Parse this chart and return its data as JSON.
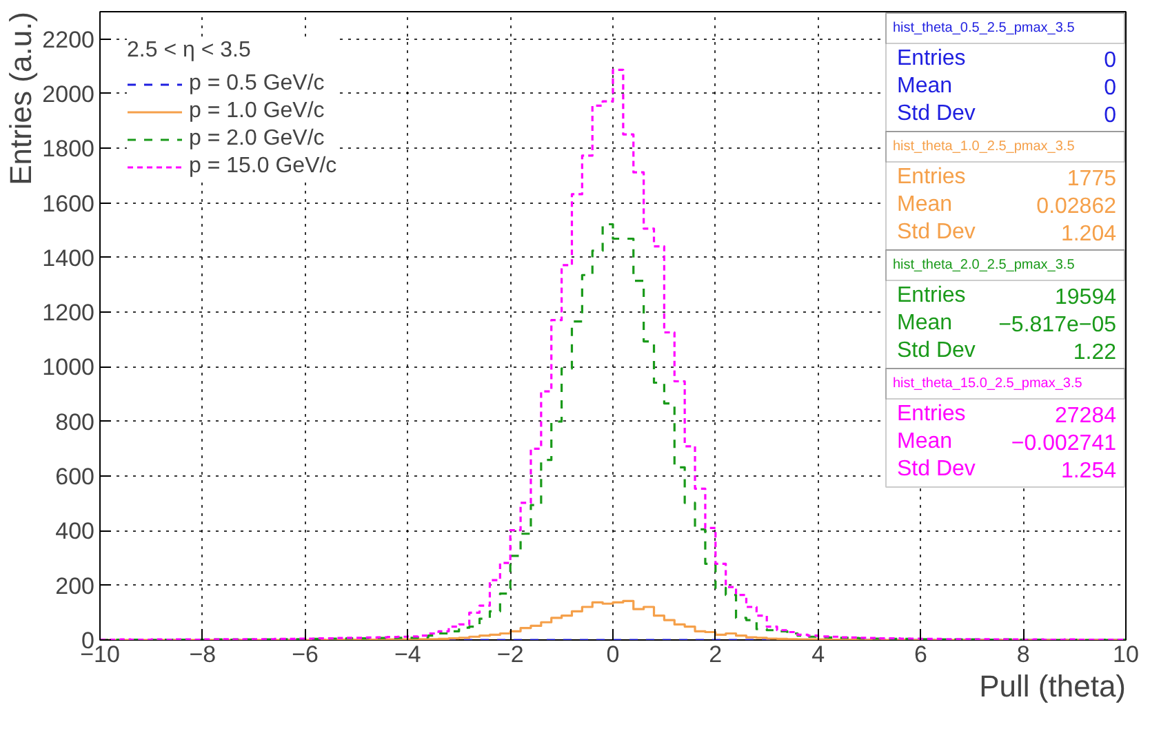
{
  "chart_data": {
    "type": "histogram",
    "xlabel": "Pull (theta)",
    "ylabel": "Entries (a.u.)",
    "legend_title": "2.5 < η < 3.5",
    "bins": [
      -10.0,
      -9.8,
      -9.6,
      -9.4,
      -9.2,
      -9.0,
      -8.8,
      -8.6,
      -8.4,
      -8.2,
      -8.0,
      -7.8,
      -7.6,
      -7.4,
      -7.2,
      -7.0,
      -6.8,
      -6.6,
      -6.4,
      -6.2,
      -6.0,
      -5.8,
      -5.6,
      -5.4,
      -5.2,
      -5.0,
      -4.8,
      -4.6,
      -4.4,
      -4.2,
      -4.0,
      -3.8,
      -3.6,
      -3.4,
      -3.2,
      -3.0,
      -2.8,
      -2.6,
      -2.4,
      -2.2,
      -2.0,
      -1.8,
      -1.6,
      -1.4,
      -1.2,
      -1.0,
      -0.8,
      -0.6,
      -0.4,
      -0.2,
      0.0,
      0.2,
      0.4,
      0.6,
      0.8,
      1.0,
      1.2,
      1.4,
      1.6,
      1.8,
      2.0,
      2.2,
      2.4,
      2.6,
      2.8,
      3.0,
      3.2,
      3.4,
      3.6,
      3.8,
      4.0,
      4.2,
      4.4,
      4.6,
      4.8,
      5.0,
      5.2,
      5.4,
      5.6,
      5.8,
      6.0,
      6.2,
      6.4,
      6.6,
      6.8,
      7.0,
      7.2,
      7.4,
      7.6,
      7.8,
      8.0,
      8.2,
      8.4,
      8.6,
      8.8,
      9.0,
      9.2,
      9.4,
      9.6,
      9.8,
      10.0
    ],
    "series": [
      {
        "name": "p = 0.5 GeV/c",
        "color": "#1f1fe0",
        "line_style": "dashed",
        "values": [
          0,
          0,
          0,
          0,
          0,
          0,
          0,
          0,
          0,
          0,
          0,
          0,
          0,
          0,
          0,
          0,
          0,
          0,
          0,
          0,
          0,
          0,
          0,
          0,
          0,
          0,
          0,
          0,
          0,
          0,
          0,
          0,
          0,
          0,
          0,
          0,
          0,
          0,
          0,
          0,
          0,
          0,
          0,
          0,
          0,
          0,
          0,
          0,
          0,
          0,
          0,
          0,
          0,
          0,
          0,
          0,
          0,
          0,
          0,
          0,
          0,
          0,
          0,
          0,
          0,
          0,
          0,
          0,
          0,
          0,
          0,
          0,
          0,
          0,
          0,
          0,
          0,
          0,
          0,
          0,
          0,
          0,
          0,
          0,
          0,
          0,
          0,
          0,
          0,
          0,
          0,
          0,
          0,
          0,
          0,
          0,
          0,
          0,
          0,
          0
        ]
      },
      {
        "name": "p = 1.0 GeV/c",
        "color": "#f5a04a",
        "line_style": "solid",
        "values": [
          0,
          0,
          0,
          0,
          0,
          0,
          0,
          0,
          0,
          0,
          0,
          0,
          0,
          0,
          0,
          0,
          0,
          0,
          0,
          0,
          0,
          1,
          0,
          1,
          1,
          1,
          1,
          2,
          2,
          2,
          2,
          3,
          3,
          4,
          6,
          8,
          12,
          16,
          19,
          24,
          32,
          44,
          52,
          65,
          81,
          89,
          105,
          121,
          138,
          133,
          138,
          143,
          113,
          121,
          89,
          73,
          57,
          49,
          32,
          29,
          19,
          24,
          16,
          10,
          8,
          5,
          4,
          3,
          2,
          2,
          2,
          1,
          1,
          1,
          0,
          1,
          0,
          0,
          1,
          0,
          0,
          0,
          0,
          0,
          0,
          0,
          0,
          0,
          0,
          0,
          0,
          0,
          0,
          0,
          0,
          0,
          0,
          0,
          0,
          0
        ]
      },
      {
        "name": "p = 2.0 GeV/c",
        "color": "#1a9a1a",
        "line_style": "dashed",
        "values": [
          0,
          1,
          0,
          1,
          1,
          0,
          1,
          1,
          1,
          1,
          1,
          2,
          1,
          2,
          2,
          2,
          2,
          3,
          3,
          3,
          4,
          4,
          5,
          5,
          6,
          6,
          7,
          7,
          7,
          8,
          8,
          10,
          16,
          24,
          32,
          45,
          49,
          78,
          105,
          170,
          308,
          389,
          494,
          659,
          800,
          994,
          1166,
          1336,
          1425,
          1522,
          1469,
          1469,
          1315,
          1093,
          942,
          866,
          632,
          502,
          405,
          279,
          191,
          165,
          81,
          73,
          40,
          36,
          32,
          24,
          16,
          12,
          10,
          9,
          8,
          7,
          6,
          5,
          5,
          4,
          4,
          3,
          3,
          3,
          2,
          2,
          2,
          2,
          1,
          1,
          2,
          1,
          1,
          1,
          1,
          0,
          1,
          1,
          0,
          1,
          0,
          1
        ]
      },
      {
        "name": "p = 15.0 GeV/c",
        "color": "#ff00ff",
        "line_style": "dotted",
        "values": [
          1,
          1,
          2,
          1,
          1,
          2,
          1,
          2,
          2,
          1,
          2,
          2,
          3,
          2,
          3,
          3,
          3,
          4,
          4,
          5,
          5,
          6,
          6,
          7,
          8,
          8,
          9,
          10,
          11,
          12,
          13,
          16,
          24,
          32,
          49,
          57,
          100,
          126,
          219,
          282,
          402,
          502,
          700,
          910,
          1171,
          1372,
          1632,
          1773,
          1956,
          1972,
          2087,
          1851,
          1712,
          1506,
          1441,
          1126,
          947,
          709,
          554,
          410,
          279,
          194,
          165,
          121,
          89,
          49,
          36,
          29,
          19,
          16,
          13,
          12,
          10,
          9,
          8,
          7,
          6,
          6,
          5,
          5,
          4,
          4,
          3,
          3,
          3,
          2,
          3,
          2,
          2,
          2,
          1,
          2,
          1,
          1,
          2,
          1,
          1,
          1,
          1,
          1
        ]
      }
    ],
    "xlim": [
      -10,
      10
    ],
    "ylim": [
      0,
      2300
    ],
    "xticks": [
      {
        "value": -10,
        "label": "−10"
      },
      {
        "value": -8,
        "label": "−8"
      },
      {
        "value": -6,
        "label": "−6"
      },
      {
        "value": -4,
        "label": "−4"
      },
      {
        "value": -2,
        "label": "−2"
      },
      0,
      2,
      4,
      6,
      8,
      10
    ],
    "yticks": [
      0,
      200,
      400,
      600,
      800,
      1000,
      1200,
      1400,
      1600,
      1800,
      2000,
      2200
    ],
    "grid": true,
    "legend": "top left",
    "annotations": [
      "hist_theta_0.5_2.5_pmax_3.5",
      "Entries",
      "0",
      "Mean",
      "0",
      "Std Dev",
      "0",
      "hist_theta_1.0_2.5_pmax_3.5",
      "Entries",
      "1775",
      "Mean",
      "0.02862",
      "Std Dev",
      "1.204",
      "hist_theta_2.0_2.5_pmax_3.5",
      "Entries",
      "19594",
      "Mean",
      "−5.817e−05",
      "Std Dev",
      "1.22",
      "hist_theta_15.0_2.5_pmax_3.5",
      "Entries",
      "27284",
      "Mean",
      "−0.002741",
      "Std Dev",
      "1.254"
    ]
  }
}
